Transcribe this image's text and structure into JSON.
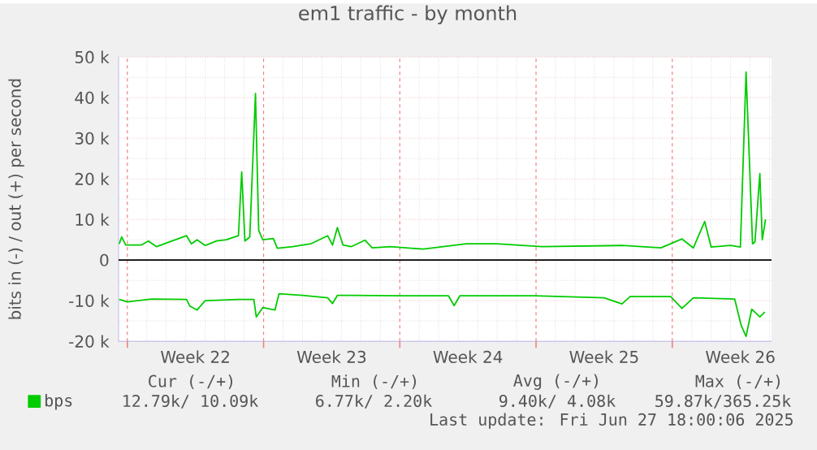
{
  "chart_data": {
    "type": "line",
    "title": "em1 traffic - by month",
    "ylabel": "bits in (-) / out (+) per second",
    "xlim": [
      "2025-05-25T13:12",
      "2025-06-28T02:24"
    ],
    "ylim": [
      -20000,
      50000
    ],
    "xticks": [
      {
        "value": "2025-05-29T12:00",
        "label": "Week 22"
      },
      {
        "value": "2025-06-05T12:00",
        "label": "Week 23"
      },
      {
        "value": "2025-06-12T12:00",
        "label": "Week 24"
      },
      {
        "value": "2025-06-19T12:00",
        "label": "Week 25"
      },
      {
        "value": "2025-06-26T12:00",
        "label": "Week 26"
      },
      {
        "value": "2025-05-26",
        "label": null
      },
      {
        "value": "2025-06-02",
        "label": null
      },
      {
        "value": "2025-06-09",
        "label": null
      },
      {
        "value": "2025-06-16",
        "label": null
      },
      {
        "value": "2025-06-23",
        "label": null
      }
    ],
    "yticks": [
      {
        "value": -20000,
        "label": "-20 k"
      },
      {
        "value": -10000,
        "label": "-10 k"
      },
      0,
      {
        "value": 10000,
        "label": "10 k"
      },
      {
        "value": 20000,
        "label": "20 k"
      },
      {
        "value": 30000,
        "label": "30 k"
      },
      {
        "value": 40000,
        "label": "40 k"
      },
      {
        "value": 50000,
        "label": "50 k"
      }
    ],
    "grid": true,
    "legend": "bottom left",
    "marker": "none",
    "line_style": "solid",
    "ref_lines": [
      {
        "axis": "y",
        "value": 0,
        "color": "#000000"
      }
    ],
    "series": [
      {
        "name": "bps",
        "color": "#00cc00",
        "x": [
          "2025-05-25T14:00",
          "2025-05-25T17:00",
          "2025-05-25T22:00",
          "2025-05-26T17:00",
          "2025-05-27T02:00",
          "2025-05-27T12:00",
          "2025-05-29T01:00",
          "2025-05-29T07:00",
          "2025-05-29T14:00",
          "2025-05-30T00:00",
          "2025-05-30T14:00",
          "2025-05-31T02:00",
          "2025-05-31T17:00",
          "2025-05-31T21:00",
          "2025-06-01T01:00",
          "2025-06-01T07:00",
          "2025-06-01T14:00",
          "2025-06-01T18:00",
          "2025-06-01T23:00",
          "2025-06-02T12:00",
          "2025-06-02T17:00",
          "2025-06-03T12:00",
          "2025-06-04T10:00",
          "2025-06-05T07:00",
          "2025-06-05T13:00",
          "2025-06-05T19:00",
          "2025-06-06T02:00",
          "2025-06-06T12:00",
          "2025-06-07T05:00",
          "2025-06-07T14:00",
          "2025-06-08T12:00",
          "2025-06-10T05:00",
          "2025-06-12T10:00",
          "2025-06-14T00:00",
          "2025-06-16T07:00",
          "2025-06-20T10:00",
          "2025-06-22T10:00",
          "2025-06-23T12:00",
          "2025-06-24T02:00",
          "2025-06-24T16:00",
          "2025-06-25T00:00",
          "2025-06-26T00:00",
          "2025-06-26T12:00",
          "2025-06-26T19:00",
          "2025-06-27T03:00",
          "2025-06-27T06:00",
          "2025-06-27T12:00",
          "2025-06-27T15:00",
          "2025-06-27T19:00"
        ],
        "values": [
          4000,
          5700,
          3700,
          3700,
          4700,
          3300,
          6000,
          4000,
          5000,
          3600,
          4700,
          5000,
          6000,
          21700,
          4700,
          5700,
          41000,
          7300,
          5000,
          5300,
          2900,
          3300,
          4000,
          6000,
          3700,
          8000,
          3700,
          3300,
          4900,
          3000,
          3300,
          2700,
          4000,
          4000,
          3300,
          3600,
          3000,
          5200,
          3000,
          9500,
          3200,
          3600,
          3200,
          46300,
          4000,
          4500,
          21300,
          5000,
          10000
        ]
      },
      {
        "color": "#00cc00",
        "x": [
          "2025-05-25T14:00",
          "2025-05-26T00:00",
          "2025-05-27T06:00",
          "2025-05-29T01:00",
          "2025-05-29T05:00",
          "2025-05-29T14:00",
          "2025-05-30T00:00",
          "2025-05-31T17:00",
          "2025-06-01T12:00",
          "2025-06-01T15:00",
          "2025-06-01T23:00",
          "2025-06-02T14:00",
          "2025-06-02T19:00",
          "2025-06-04T00:00",
          "2025-06-05T07:00",
          "2025-06-05T13:00",
          "2025-06-05T19:00",
          "2025-06-06T12:00",
          "2025-06-09T00:00",
          "2025-06-10T05:00",
          "2025-06-11T12:00",
          "2025-06-11T19:00",
          "2025-06-12T02:00",
          "2025-06-15T22:00",
          "2025-06-19T12:00",
          "2025-06-20T10:00",
          "2025-06-20T20:00",
          "2025-06-22T22:00",
          "2025-06-23T12:00",
          "2025-06-24T02:00",
          "2025-06-26T05:00",
          "2025-06-26T13:00",
          "2025-06-26T19:00",
          "2025-06-27T02:00",
          "2025-06-27T12:00",
          "2025-06-27T18:00"
        ],
        "values": [
          -9700,
          -10300,
          -9600,
          -9700,
          -11300,
          -12300,
          -10000,
          -9700,
          -9700,
          -14000,
          -11700,
          -12300,
          -8300,
          -8700,
          -9300,
          -10700,
          -8700,
          -8700,
          -8800,
          -8800,
          -8800,
          -11200,
          -8800,
          -8800,
          -9300,
          -10800,
          -9000,
          -9000,
          -11900,
          -9300,
          -9600,
          -16100,
          -18800,
          -12100,
          -14000,
          -12800
        ]
      }
    ],
    "annotations": [
      "Cur (-/+)",
      "Min (-/+)",
      "Avg (-/+)",
      "Max (-/+)",
      "12.79k/ 10.09k",
      "6.77k/ 2.20k",
      "9.40k/ 4.08k",
      "59.87k/365.25k",
      "Last update: Fri Jun 27 18:00:06 2025"
    ]
  }
}
